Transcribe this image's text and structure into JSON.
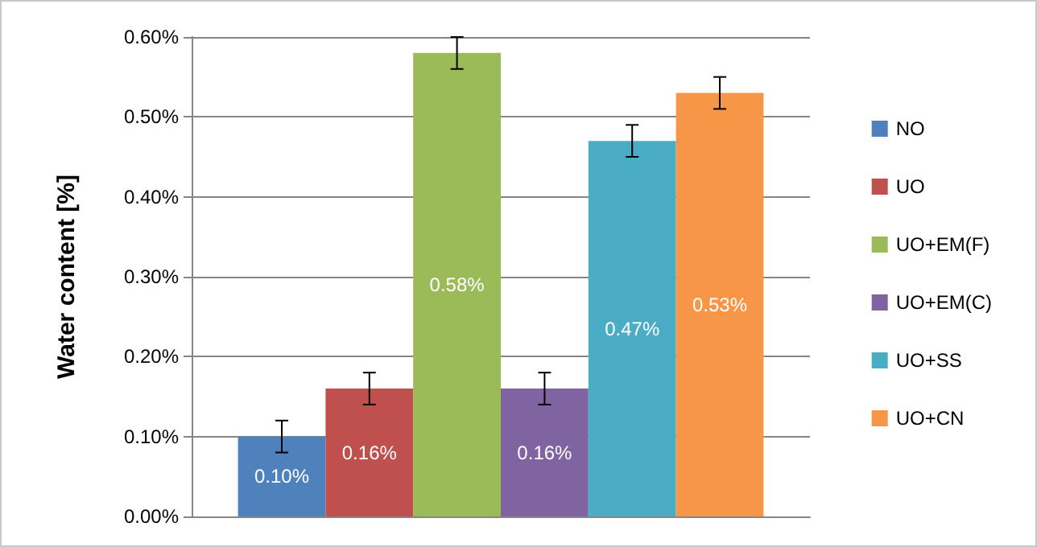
{
  "chart_data": {
    "type": "bar",
    "ylabel": "Water content [%]",
    "categories": [
      null
    ],
    "series": [
      {
        "name": "NO",
        "color": "#4f81bd",
        "values": [
          0.1
        ],
        "errors": [
          0.02
        ],
        "value_labels": [
          "0.10%"
        ]
      },
      {
        "name": "UO",
        "color": "#c0504d",
        "values": [
          0.16
        ],
        "errors": [
          0.02
        ],
        "value_labels": [
          "0.16%"
        ]
      },
      {
        "name": "UO+EM(F)",
        "color": "#9bbb59",
        "values": [
          0.58
        ],
        "errors": [
          0.02
        ],
        "value_labels": [
          "0.58%"
        ]
      },
      {
        "name": "UO+EM(C)",
        "color": "#8064a2",
        "values": [
          0.16
        ],
        "errors": [
          0.02
        ],
        "value_labels": [
          "0.16%"
        ]
      },
      {
        "name": "UO+SS",
        "color": "#4bacc6",
        "values": [
          0.47
        ],
        "errors": [
          0.02
        ],
        "value_labels": [
          "0.47%"
        ]
      },
      {
        "name": "UO+CN",
        "color": "#f79646",
        "values": [
          0.53
        ],
        "errors": [
          0.02
        ],
        "value_labels": [
          "0.53%"
        ]
      }
    ],
    "ylim": [
      0,
      0.6
    ],
    "yticks": [
      {
        "value": 0,
        "label": "0.00%"
      },
      {
        "value": 0.1,
        "label": "0.10%"
      },
      {
        "value": 0.2,
        "label": "0.20%"
      },
      {
        "value": 0.3,
        "label": "0.30%"
      },
      {
        "value": 0.4,
        "label": "0.40%"
      },
      {
        "value": 0.5,
        "label": "0.50%"
      },
      {
        "value": 0.6,
        "label": "0.60%"
      }
    ],
    "grid": "y",
    "legend": "right"
  }
}
